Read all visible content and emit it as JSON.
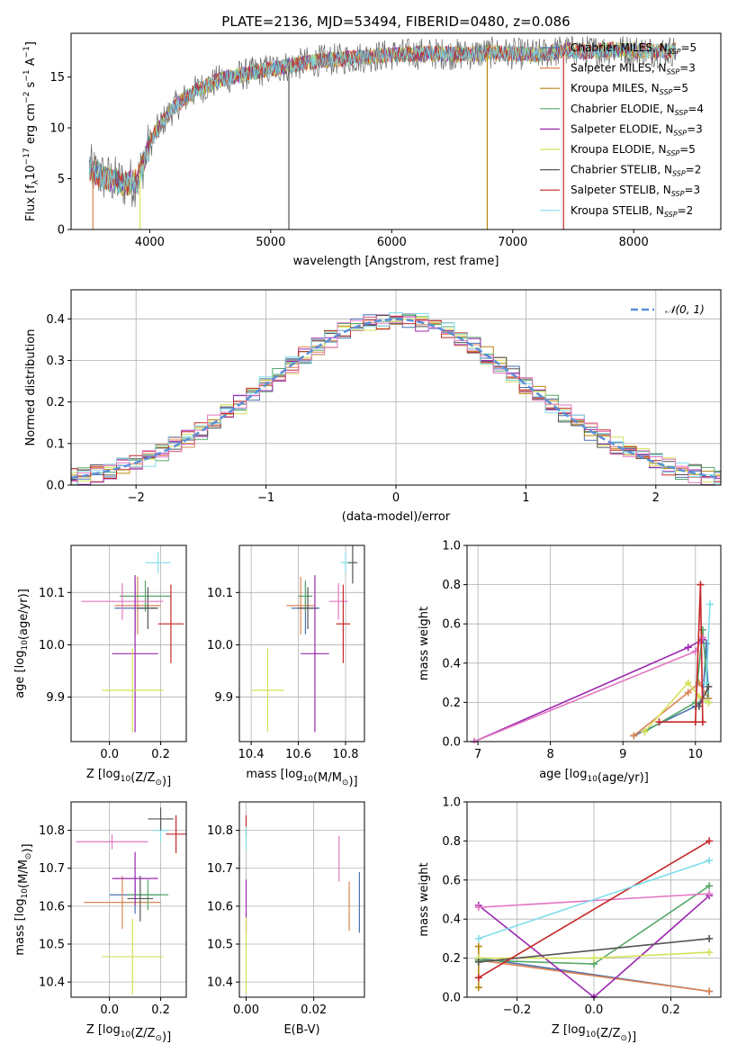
{
  "figure": {
    "title": "PLATE=2136, MJD=53494, FIBERID=0480, z=0.086"
  },
  "chart_data": [
    {
      "id": "spectrum",
      "type": "line",
      "xlabel": "wavelength [Angstrom, rest frame]",
      "ylabel": "Flux [f$_\\lambda$10$^{-17}$ erg cm$^{-2}$ s$^{-1}$ A$^{-1}$]",
      "ylabel_parts": [
        "Flux [f",
        "λ",
        "10",
        "−17",
        " erg cm",
        "−2",
        " s",
        "−1",
        " A",
        "−1",
        "]"
      ],
      "xlim": [
        3350,
        8720
      ],
      "ylim": [
        0,
        19.3
      ],
      "xticks": [
        4000,
        5000,
        6000,
        7000,
        8000
      ],
      "yticks": [
        0,
        5,
        10,
        15
      ],
      "grid": false,
      "legend": "upper right",
      "continuum": {
        "x": [
          3500,
          3600,
          3700,
          3800,
          3900,
          4000,
          4100,
          4200,
          4300,
          4400,
          4600,
          4800,
          5000,
          5200,
          5400,
          5600,
          5800,
          6000,
          6200,
          6400,
          6600,
          6800,
          7000,
          7200,
          7400,
          7600,
          7800,
          8000,
          8200,
          8350
        ],
        "y": [
          6.0,
          5.2,
          4.8,
          4.5,
          4.8,
          8.5,
          10.5,
          12.0,
          13.0,
          13.8,
          14.8,
          15.3,
          15.8,
          16.2,
          16.6,
          16.8,
          17.0,
          17.2,
          17.3,
          17.3,
          17.2,
          17.4,
          17.3,
          17.2,
          17.6,
          17.5,
          17.7,
          17.6,
          17.5,
          17.6
        ]
      },
      "series": [
        {
          "name": "Chabrier MILES, N$_{SSP}$=5",
          "label_main": "Chabrier MILES, N",
          "label_sub": "SSP",
          "label_end": "=5",
          "color": "#4c72b0"
        },
        {
          "name": "Salpeter MILES, N$_{SSP}$=3",
          "label_main": "Salpeter MILES, N",
          "label_sub": "SSP",
          "label_end": "=3",
          "color": "#dd8452"
        },
        {
          "name": "Kroupa MILES, N$_{SSP}$=5",
          "label_main": "Kroupa MILES, N",
          "label_sub": "SSP",
          "label_end": "=5",
          "color": "#b8860b"
        },
        {
          "name": "Chabrier ELODIE, N$_{SSP}$=4",
          "label_main": "Chabrier ELODIE, N",
          "label_sub": "SSP",
          "label_end": "=4",
          "color": "#55a868"
        },
        {
          "name": "Salpeter ELODIE, N$_{SSP}$=3",
          "label_main": "Salpeter ELODIE, N",
          "label_sub": "SSP",
          "label_end": "=3",
          "color": "#9c27b0"
        },
        {
          "name": "Kroupa ELODIE, N$_{SSP}$=5",
          "label_main": "Kroupa ELODIE, N",
          "label_sub": "SSP",
          "label_end": "=5",
          "color": "#d4e157"
        },
        {
          "name": "Chabrier STELIB, N$_{SSP}$=2",
          "label_main": "Chabrier STELIB, N",
          "label_sub": "SSP",
          "label_end": "=2",
          "color": "#555555"
        },
        {
          "name": "Salpeter STELIB, N$_{SSP}$=3",
          "label_main": "Salpeter STELIB, N",
          "label_sub": "SSP",
          "label_end": "=3",
          "color": "#c62828"
        },
        {
          "name": "Kroupa STELIB, N$_{SSP}$=2",
          "label_main": "Kroupa STELIB, N",
          "label_sub": "SSP",
          "label_end": "=2",
          "color": "#80deea"
        }
      ]
    },
    {
      "id": "residuals",
      "type": "histogram",
      "xlabel": "(data-model)/error",
      "ylabel": "Normed distribution",
      "xlim": [
        -2.5,
        2.5
      ],
      "ylim": [
        0,
        0.47
      ],
      "xticks": [
        -2,
        -1,
        0,
        1,
        2
      ],
      "yticks": [
        0.0,
        0.1,
        0.2,
        0.3,
        0.4
      ],
      "grid": true,
      "legend": "upper right",
      "reference": {
        "label": "$\\mathcal{N}(0,1)$",
        "label_text": "𝒩(0, 1)",
        "color": "#5b8fd9"
      },
      "bin_width": 0.1
    },
    {
      "id": "age_vs_Z",
      "type": "errorbar",
      "xlabel": "Z [log$_{10}$(Z/Z$_\\odot$)]",
      "ylabel": "age  [log$_{10}$(age/yr)]",
      "xlim": [
        -0.15,
        0.3
      ],
      "ylim": [
        9.815,
        10.19
      ],
      "xticks": [
        0.0,
        0.2
      ],
      "yticks": [
        9.9,
        10.0,
        10.1
      ],
      "grid": true,
      "points": [
        {
          "color": "#4c72b0",
          "x": 0.1,
          "xerr": 0.08,
          "y": 10.07,
          "yerr": 0.05
        },
        {
          "color": "#dd8452",
          "x": 0.11,
          "xerr": 0.09,
          "y": 10.075,
          "yerr": 0.055
        },
        {
          "color": "#55a868",
          "x": 0.14,
          "xerr": 0.1,
          "y": 10.093,
          "yerr": 0.03
        },
        {
          "color": "#555555",
          "x": 0.15,
          "xerr": 0.04,
          "y": 10.07,
          "yerr": 0.04
        },
        {
          "color": "#e377c2",
          "x": 0.05,
          "xerr": 0.16,
          "y": 10.083,
          "yerr": 0.035
        },
        {
          "color": "#9c27b0",
          "x": 0.1,
          "xerr": 0.09,
          "y": 9.983,
          "yerr": 0.15
        },
        {
          "color": "#d4e157",
          "x": 0.09,
          "xerr": 0.12,
          "y": 9.913,
          "yerr": 0.08
        },
        {
          "color": "#c62828",
          "x": 0.24,
          "xerr": 0.05,
          "y": 10.04,
          "yerr": 0.075
        },
        {
          "color": "#80deea",
          "x": 0.19,
          "xerr": 0.05,
          "y": 10.157,
          "yerr": 0.02
        }
      ]
    },
    {
      "id": "age_vs_mass",
      "type": "errorbar",
      "xlabel": "mass [log$_{10}$(M/M$_\\odot$)]",
      "ylabel": "",
      "xlim": [
        10.35,
        10.88
      ],
      "ylim": [
        9.815,
        10.19
      ],
      "xticks": [
        10.4,
        10.6,
        10.8
      ],
      "yticks": [
        9.9,
        10.0,
        10.1
      ],
      "grid": true,
      "points": [
        {
          "color": "#4c72b0",
          "x": 10.63,
          "xerr": 0.06,
          "y": 10.07,
          "yerr": 0.05
        },
        {
          "color": "#dd8452",
          "x": 10.61,
          "xerr": 0.06,
          "y": 10.075,
          "yerr": 0.055
        },
        {
          "color": "#55a868",
          "x": 10.63,
          "xerr": 0.03,
          "y": 10.093,
          "yerr": 0.03
        },
        {
          "color": "#555555",
          "x": 10.64,
          "xerr": 0.04,
          "y": 10.07,
          "yerr": 0.04
        },
        {
          "color": "#e377c2",
          "x": 10.77,
          "xerr": 0.04,
          "y": 10.083,
          "yerr": 0.035
        },
        {
          "color": "#9c27b0",
          "x": 10.67,
          "xerr": 0.06,
          "y": 9.983,
          "yerr": 0.15
        },
        {
          "color": "#d4e157",
          "x": 10.47,
          "xerr": 0.07,
          "y": 9.913,
          "yerr": 0.08
        },
        {
          "color": "#c62828",
          "x": 10.79,
          "xerr": 0.03,
          "y": 10.04,
          "yerr": 0.075
        },
        {
          "color": "#80deea",
          "x": 10.8,
          "xerr": 0.02,
          "y": 10.157,
          "yerr": 0.02
        },
        {
          "color": "#555555",
          "x": 10.83,
          "xerr": 0.02,
          "y": 10.157,
          "yerr": 0.04
        }
      ]
    },
    {
      "id": "weight_vs_age",
      "type": "line",
      "xlabel": "age  [log$_{10}$(age/yr)]",
      "ylabel": "mass weight",
      "xlim": [
        6.85,
        10.35
      ],
      "ylim": [
        0,
        1.0
      ],
      "xticks": [
        7,
        8,
        9,
        10
      ],
      "yticks": [
        0.0,
        0.2,
        0.4,
        0.6,
        0.8,
        1.0
      ],
      "grid": true,
      "series": [
        {
          "color": "#4c72b0",
          "x": [
            9.15,
            10.0,
            10.1,
            10.15,
            10.18
          ],
          "y": [
            0.03,
            0.18,
            0.22,
            0.5,
            0.2
          ]
        },
        {
          "color": "#dd8452",
          "x": [
            9.15,
            9.9,
            10.05,
            10.18
          ],
          "y": [
            0.03,
            0.25,
            0.3,
            0.22
          ]
        },
        {
          "color": "#55a868",
          "x": [
            9.3,
            10.0,
            10.1,
            10.18
          ],
          "y": [
            0.05,
            0.2,
            0.57,
            0.2
          ]
        },
        {
          "color": "#9c27b0",
          "x": [
            6.95,
            9.9,
            10.1
          ],
          "y": [
            0.0,
            0.48,
            0.52
          ]
        },
        {
          "color": "#e377c2",
          "x": [
            6.95,
            10.0,
            10.1
          ],
          "y": [
            0.0,
            0.46,
            0.53
          ]
        },
        {
          "color": "#d4e157",
          "x": [
            9.3,
            9.9,
            10.05,
            10.18
          ],
          "y": [
            0.05,
            0.3,
            0.23,
            0.2
          ]
        },
        {
          "color": "#555555",
          "x": [
            10.05,
            10.18
          ],
          "y": [
            0.18,
            0.28
          ]
        },
        {
          "color": "#c62828",
          "x": [
            9.5,
            10.0,
            10.07,
            10.1
          ],
          "y": [
            0.1,
            0.1,
            0.8,
            0.1
          ]
        },
        {
          "color": "#80deea",
          "x": [
            10.15,
            10.2
          ],
          "y": [
            0.3,
            0.7
          ]
        }
      ]
    },
    {
      "id": "mass_vs_Z",
      "type": "errorbar",
      "xlabel": "Z [log$_{10}$(Z/Z$_\\odot$)]",
      "ylabel": "mass [log$_{10}$(M/M$_\\odot$)]",
      "xlim": [
        -0.15,
        0.3
      ],
      "ylim": [
        10.36,
        10.875
      ],
      "xticks": [
        0.0,
        0.2
      ],
      "yticks": [
        10.4,
        10.5,
        10.6,
        10.7,
        10.8
      ],
      "grid": true,
      "points": [
        {
          "color": "#4c72b0",
          "x": 0.1,
          "xerr": 0.1,
          "y": 10.63,
          "yerr": 0.05
        },
        {
          "color": "#dd8452",
          "x": 0.05,
          "xerr": 0.15,
          "y": 10.61,
          "yerr": 0.07
        },
        {
          "color": "#55a868",
          "x": 0.15,
          "xerr": 0.08,
          "y": 10.63,
          "yerr": 0.04
        },
        {
          "color": "#555555",
          "x": 0.12,
          "xerr": 0.05,
          "y": 10.62,
          "yerr": 0.06
        },
        {
          "color": "#e377c2",
          "x": 0.01,
          "xerr": 0.14,
          "y": 10.77,
          "yerr": 0.02
        },
        {
          "color": "#9c27b0",
          "x": 0.1,
          "xerr": 0.09,
          "y": 10.673,
          "yerr": 0.07
        },
        {
          "color": "#d4e157",
          "x": 0.09,
          "xerr": 0.12,
          "y": 10.467,
          "yerr": 0.1
        },
        {
          "color": "#c62828",
          "x": 0.26,
          "xerr": 0.04,
          "y": 10.79,
          "yerr": 0.05
        },
        {
          "color": "#80deea",
          "x": 0.2,
          "xerr": 0.03,
          "y": 10.8,
          "yerr": 0.03
        },
        {
          "color": "#555555",
          "x": 0.2,
          "xerr": 0.05,
          "y": 10.83,
          "yerr": 0.03
        }
      ]
    },
    {
      "id": "mass_vs_ebv",
      "type": "errorbar",
      "xlabel": "E(B-V)",
      "ylabel": "",
      "xlim": [
        -0.002,
        0.035
      ],
      "ylim": [
        10.36,
        10.875
      ],
      "xticks": [
        0.0,
        0.02
      ],
      "yticks": [
        10.4,
        10.5,
        10.6,
        10.7,
        10.8
      ],
      "grid": true,
      "points": [
        {
          "color": "#4c72b0",
          "x": 0.0335,
          "xerr": 0,
          "y": 10.61,
          "yerr": 0.08
        },
        {
          "color": "#dd8452",
          "x": 0.0305,
          "xerr": 0,
          "y": 10.6,
          "yerr": 0.065
        },
        {
          "color": "#e377c2",
          "x": 0.0275,
          "xerr": 0,
          "y": 10.725,
          "yerr": 0.06
        },
        {
          "color": "#9c27b0",
          "x": 0.0,
          "xerr": 0,
          "y": 10.6,
          "yerr": 0.07
        },
        {
          "color": "#d4e157",
          "x": 0.0,
          "xerr": 0,
          "y": 10.47,
          "yerr": 0.1
        },
        {
          "color": "#c62828",
          "x": 0.0,
          "xerr": 0,
          "y": 10.81,
          "yerr": 0.03
        },
        {
          "color": "#80deea",
          "x": 0.0,
          "xerr": 0,
          "y": 10.78,
          "yerr": 0.03
        }
      ]
    },
    {
      "id": "weight_vs_Z",
      "type": "line",
      "xlabel": "Z [log$_{10}$(Z/Z$_\\odot$)]",
      "ylabel": "mass weight",
      "xlim": [
        -0.33,
        0.33
      ],
      "ylim": [
        0,
        1.0
      ],
      "xticks": [
        -0.2,
        0.0,
        0.2
      ],
      "yticks": [
        0.0,
        0.2,
        0.4,
        0.6,
        0.8,
        1.0
      ],
      "grid": true,
      "series": [
        {
          "color": "#4c72b0",
          "x": [
            -0.3,
            0.3
          ],
          "y": [
            0.2,
            0.03
          ]
        },
        {
          "color": "#dd8452",
          "x": [
            -0.3,
            0.3
          ],
          "y": [
            0.19,
            0.03
          ]
        },
        {
          "color": "#b8860b",
          "x": [
            -0.3,
            -0.3
          ],
          "y": [
            0.05,
            0.26
          ]
        },
        {
          "color": "#55a868",
          "x": [
            -0.3,
            0.0,
            0.3
          ],
          "y": [
            0.19,
            0.17,
            0.57
          ]
        },
        {
          "color": "#9c27b0",
          "x": [
            -0.3,
            0.0,
            0.3
          ],
          "y": [
            0.47,
            0.0,
            0.52
          ]
        },
        {
          "color": "#e377c2",
          "x": [
            -0.3,
            0.3
          ],
          "y": [
            0.46,
            0.53
          ]
        },
        {
          "color": "#d4e157",
          "x": [
            -0.3,
            0.0,
            0.3
          ],
          "y": [
            0.2,
            0.2,
            0.23
          ]
        },
        {
          "color": "#555555",
          "x": [
            -0.3,
            0.3
          ],
          "y": [
            0.18,
            0.3
          ]
        },
        {
          "color": "#c62828",
          "x": [
            -0.3,
            0.3
          ],
          "y": [
            0.1,
            0.8
          ]
        },
        {
          "color": "#80deea",
          "x": [
            -0.3,
            0.3
          ],
          "y": [
            0.3,
            0.7
          ]
        }
      ]
    }
  ]
}
